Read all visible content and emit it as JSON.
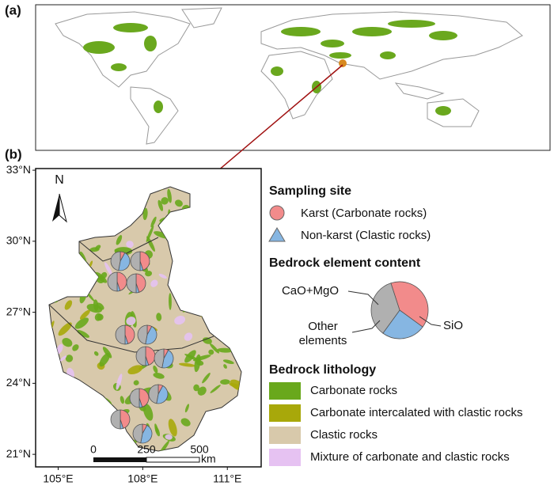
{
  "panel_labels": [
    "(a)",
    "(b)"
  ],
  "map_b": {
    "north": "N",
    "xlim": [
      104.2,
      112.2
    ],
    "ylim": [
      20.47,
      33.07
    ],
    "xticks": [
      {
        "value": 105,
        "label": "105°E"
      },
      {
        "value": 108,
        "label": "108°E"
      },
      {
        "value": 111,
        "label": "111°E"
      }
    ],
    "yticks": [
      {
        "value": 33,
        "label": "33°N"
      },
      {
        "value": 30,
        "label": "30°N"
      },
      {
        "value": 27,
        "label": "27°N"
      },
      {
        "value": 24,
        "label": "24°N"
      },
      {
        "value": 21,
        "label": "21°N"
      }
    ],
    "scale_bar": {
      "labels": [
        "0",
        "250",
        "500"
      ],
      "unit": "km"
    },
    "sites": [
      [
        8,
        45,
        47
      ],
      [
        45,
        5,
        50
      ],
      [
        45,
        5,
        50
      ],
      [
        45,
        5,
        50
      ],
      [
        45,
        5,
        50
      ],
      [
        8,
        45,
        47
      ],
      [
        45,
        5,
        50
      ],
      [
        8,
        45,
        47
      ],
      [
        45,
        5,
        50
      ],
      [
        8,
        45,
        47
      ],
      [
        45,
        5,
        50
      ],
      [
        8,
        45,
        47
      ]
    ]
  },
  "legend": {
    "sampling_title": "Sampling site",
    "sampling": [
      {
        "label": "Karst (Carbonate rocks)",
        "color": "#f28b8b"
      },
      {
        "label": "Non-karst (Clastic rocks)",
        "color": "#86b6e2"
      }
    ],
    "element_title": "Bedrock element content",
    "elements": [
      {
        "label": [
          "CaO+MgO"
        ],
        "color": "#f28b8b",
        "value": 40
      },
      {
        "label": [
          "SiO"
        ],
        "color": "#86b6e2",
        "value": 25
      },
      {
        "label": [
          "Other",
          "elements"
        ],
        "color": "#b0b0b0",
        "value": 35
      }
    ],
    "lithology_title": "Bedrock lithology",
    "lithology": [
      {
        "label": "Carbonate rocks",
        "color": "#69a81c"
      },
      {
        "label": "Carbonate intercalated with clastic rocks",
        "color": "#a8a80a"
      },
      {
        "label": "Clastic rocks",
        "color": "#d8c9ab"
      },
      {
        "label": "Mixture of carbonate and clastic rocks",
        "color": "#e6c2f2"
      }
    ]
  }
}
